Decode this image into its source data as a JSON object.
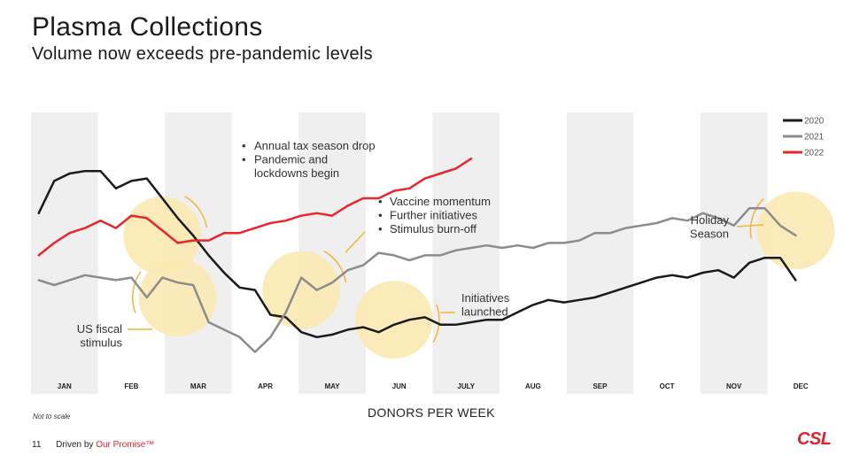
{
  "header": {
    "title": "Plasma Collections",
    "subtitle": "Volume now exceeds pre-pandemic levels"
  },
  "chart_data": {
    "type": "line",
    "title": "Plasma Collections",
    "xlabel": "DONORS PER WEEK",
    "ylabel": "",
    "note": "Not to scale",
    "categories": [
      "JAN",
      "FEB",
      "MAR",
      "APR",
      "MAY",
      "JUN",
      "JULY",
      "AUG",
      "SEP",
      "OCT",
      "NOV",
      "DEC"
    ],
    "x_unit": "week",
    "ylim": [
      0,
      100
    ],
    "series": [
      {
        "name": "2020",
        "color": "#1a1a1a",
        "points": [
          [
            1,
            64
          ],
          [
            2,
            77
          ],
          [
            3,
            80
          ],
          [
            4,
            81
          ],
          [
            5,
            81
          ],
          [
            6,
            74
          ],
          [
            7,
            77
          ],
          [
            8,
            78
          ],
          [
            9,
            70
          ],
          [
            10,
            62
          ],
          [
            11,
            55
          ],
          [
            12,
            47
          ],
          [
            13,
            40
          ],
          [
            14,
            34
          ],
          [
            15,
            33
          ],
          [
            16,
            23
          ],
          [
            17,
            22
          ],
          [
            18,
            16
          ],
          [
            19,
            14
          ],
          [
            20,
            15
          ],
          [
            21,
            17
          ],
          [
            22,
            18
          ],
          [
            23,
            16
          ],
          [
            24,
            19
          ],
          [
            25,
            21
          ],
          [
            26,
            22
          ],
          [
            27,
            19
          ],
          [
            28,
            19
          ],
          [
            29,
            20
          ],
          [
            30,
            21
          ],
          [
            31,
            21
          ],
          [
            32,
            24
          ],
          [
            33,
            27
          ],
          [
            34,
            29
          ],
          [
            35,
            28
          ],
          [
            36,
            29
          ],
          [
            37,
            30
          ],
          [
            38,
            32
          ],
          [
            39,
            34
          ],
          [
            40,
            36
          ],
          [
            41,
            38
          ],
          [
            42,
            39
          ],
          [
            43,
            38
          ],
          [
            44,
            40
          ],
          [
            45,
            41
          ],
          [
            46,
            38
          ],
          [
            47,
            44
          ],
          [
            48,
            46
          ],
          [
            49,
            46
          ],
          [
            50,
            37
          ]
        ]
      },
      {
        "name": "2021",
        "color": "#8c8c8c",
        "points": [
          [
            1,
            37
          ],
          [
            2,
            35
          ],
          [
            3,
            37
          ],
          [
            4,
            39
          ],
          [
            5,
            38
          ],
          [
            6,
            37
          ],
          [
            7,
            38
          ],
          [
            8,
            30
          ],
          [
            9,
            38
          ],
          [
            10,
            36
          ],
          [
            11,
            35
          ],
          [
            12,
            20
          ],
          [
            13,
            17
          ],
          [
            14,
            14
          ],
          [
            15,
            8
          ],
          [
            16,
            14
          ],
          [
            17,
            24
          ],
          [
            18,
            38
          ],
          [
            19,
            33
          ],
          [
            20,
            36
          ],
          [
            21,
            41
          ],
          [
            22,
            43
          ],
          [
            23,
            48
          ],
          [
            24,
            47
          ],
          [
            25,
            45
          ],
          [
            26,
            47
          ],
          [
            27,
            47
          ],
          [
            28,
            49
          ],
          [
            29,
            50
          ],
          [
            30,
            51
          ],
          [
            31,
            50
          ],
          [
            32,
            51
          ],
          [
            33,
            50
          ],
          [
            34,
            52
          ],
          [
            35,
            52
          ],
          [
            36,
            53
          ],
          [
            37,
            56
          ],
          [
            38,
            56
          ],
          [
            39,
            58
          ],
          [
            40,
            59
          ],
          [
            41,
            60
          ],
          [
            42,
            62
          ],
          [
            43,
            61
          ],
          [
            44,
            64
          ],
          [
            45,
            62
          ],
          [
            46,
            59
          ],
          [
            47,
            66
          ],
          [
            48,
            66
          ],
          [
            49,
            59
          ],
          [
            50,
            55
          ]
        ]
      },
      {
        "name": "2022",
        "color": "#e8262c",
        "points": [
          [
            1,
            47
          ],
          [
            2,
            52
          ],
          [
            3,
            56
          ],
          [
            4,
            58
          ],
          [
            5,
            61
          ],
          [
            6,
            58
          ],
          [
            7,
            63
          ],
          [
            8,
            62
          ],
          [
            9,
            57
          ],
          [
            10,
            52
          ],
          [
            11,
            53
          ],
          [
            12,
            53
          ],
          [
            13,
            56
          ],
          [
            14,
            56
          ],
          [
            15,
            58
          ],
          [
            16,
            60
          ],
          [
            17,
            61
          ],
          [
            18,
            63
          ],
          [
            19,
            64
          ],
          [
            20,
            63
          ],
          [
            21,
            67
          ],
          [
            22,
            70
          ],
          [
            23,
            70
          ],
          [
            24,
            73
          ],
          [
            25,
            74
          ],
          [
            26,
            78
          ],
          [
            27,
            80
          ],
          [
            28,
            82
          ],
          [
            29,
            86
          ]
        ]
      }
    ],
    "legend": {
      "position": "top-right",
      "entries": [
        "2020",
        "2021",
        "2022"
      ]
    },
    "annotations": [
      {
        "id": "tax",
        "lines": [
          "Annual tax season drop",
          "Pandemic and",
          "lockdowns begin"
        ],
        "bullets": [
          true,
          true,
          false
        ],
        "circle_week": 9,
        "circle_value": 55
      },
      {
        "id": "vaccine",
        "lines": [
          "Vaccine momentum",
          "Further initiatives",
          "Stimulus burn-off"
        ],
        "bullets": [
          true,
          true,
          true
        ],
        "circle_week": 18,
        "circle_value": 33
      },
      {
        "id": "fiscal",
        "lines": [
          "US fiscal",
          "stimulus"
        ],
        "bullets": [
          false,
          false
        ],
        "circle_week": 10,
        "circle_value": 30
      },
      {
        "id": "initiatives",
        "lines": [
          "Initiatives",
          "launched"
        ],
        "bullets": [
          false,
          false
        ],
        "circle_week": 24,
        "circle_value": 21
      },
      {
        "id": "holiday",
        "lines": [
          "Holiday",
          "Season"
        ],
        "bullets": [
          false,
          false
        ],
        "circle_week": 50,
        "circle_value": 57
      }
    ]
  },
  "footer": {
    "note": "Not to scale",
    "page_number": "11",
    "driven_by": "Driven by",
    "promise": "Our Promise™",
    "logo": "CSL"
  }
}
